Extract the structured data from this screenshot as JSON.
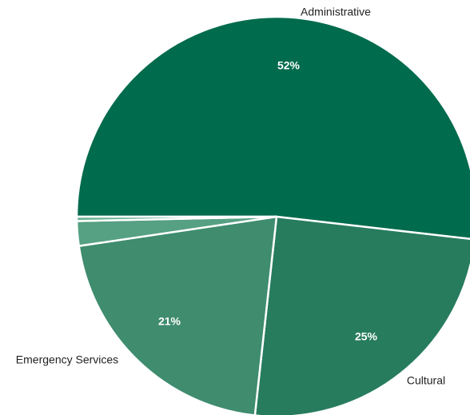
{
  "chart_data": {
    "type": "pie",
    "title": "",
    "slices": [
      {
        "label": "Administrative",
        "value": 52,
        "value_label": "52%",
        "color": "#016b4d"
      },
      {
        "label": "Cultural",
        "value": 25,
        "value_label": "25%",
        "color": "#277c5e"
      },
      {
        "label": "Emergency Services",
        "value": 21,
        "value_label": "21%",
        "color": "#3f8c6f"
      },
      {
        "label": "",
        "value": 2,
        "value_label": "",
        "color": "#56a083"
      },
      {
        "label": "",
        "value": 0.35,
        "value_label": "",
        "color": "#6cb395"
      }
    ],
    "legend": "none",
    "start_direction": "left",
    "clockwise": true
  }
}
